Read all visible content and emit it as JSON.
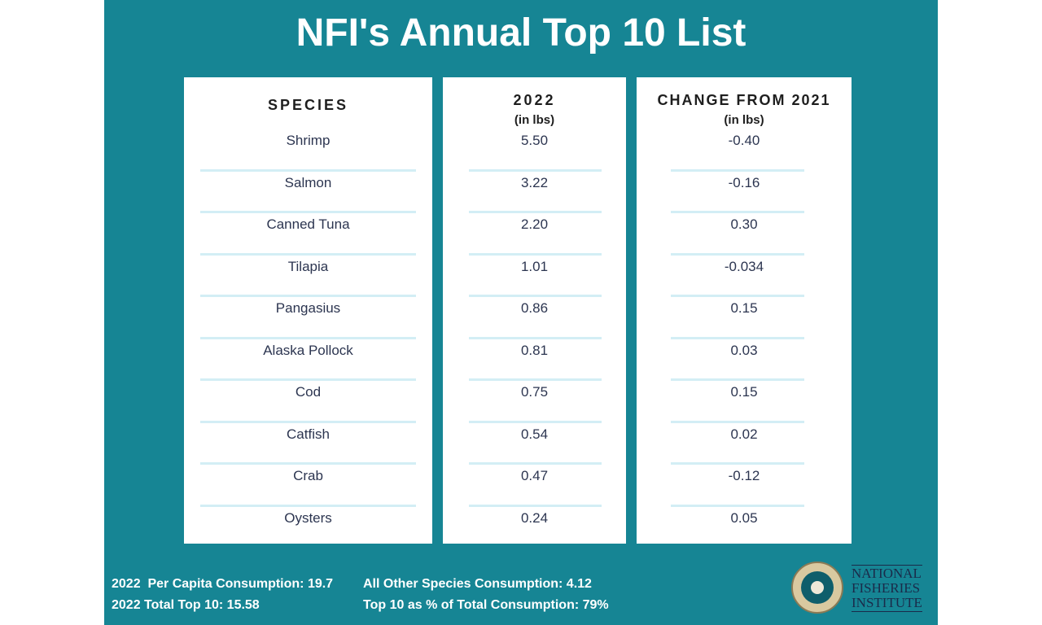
{
  "title": "NFI's Annual Top 10 List",
  "columns": {
    "species": {
      "header": "SPECIES"
    },
    "y2022": {
      "header": "2022",
      "unit": "(in lbs)"
    },
    "change": {
      "header": "CHANGE FROM 2021",
      "unit": "(in lbs)"
    }
  },
  "rows": [
    {
      "species": "Shrimp",
      "y2022": "5.50",
      "change": "-0.40"
    },
    {
      "species": "Salmon",
      "y2022": "3.22",
      "change": "-0.16"
    },
    {
      "species": "Canned Tuna",
      "y2022": "2.20",
      "change": "0.30"
    },
    {
      "species": "Tilapia",
      "y2022": "1.01",
      "change": "-0.034"
    },
    {
      "species": "Pangasius",
      "y2022": "0.86",
      "change": "0.15"
    },
    {
      "species": "Alaska Pollock",
      "y2022": "0.81",
      "change": "0.03"
    },
    {
      "species": "Cod",
      "y2022": "0.75",
      "change": "0.15"
    },
    {
      "species": "Catfish",
      "y2022": "0.54",
      "change": "0.02"
    },
    {
      "species": "Crab",
      "y2022": "0.47",
      "change": "-0.12"
    },
    {
      "species": "Oysters",
      "y2022": "0.24",
      "change": "0.05"
    }
  ],
  "footer": {
    "per_capita": "2022  Per Capita Consumption: 19.7",
    "total_top10": "2022 Total Top 10: 15.58",
    "other_species": "All Other Species Consumption: 4.12",
    "top10_pct": "Top 10 as % of Total Consumption: 79%"
  },
  "logo": {
    "line1": "NATIONAL",
    "line2": "FISHERIES",
    "line3": "INSTITUTE",
    "seal_text": "NATIONAL FISHERIES INSTITUTE INC."
  },
  "colors": {
    "background": "#168594",
    "panel": "#ffffff",
    "divider": "#d3eef5",
    "text": "#2c3550"
  }
}
